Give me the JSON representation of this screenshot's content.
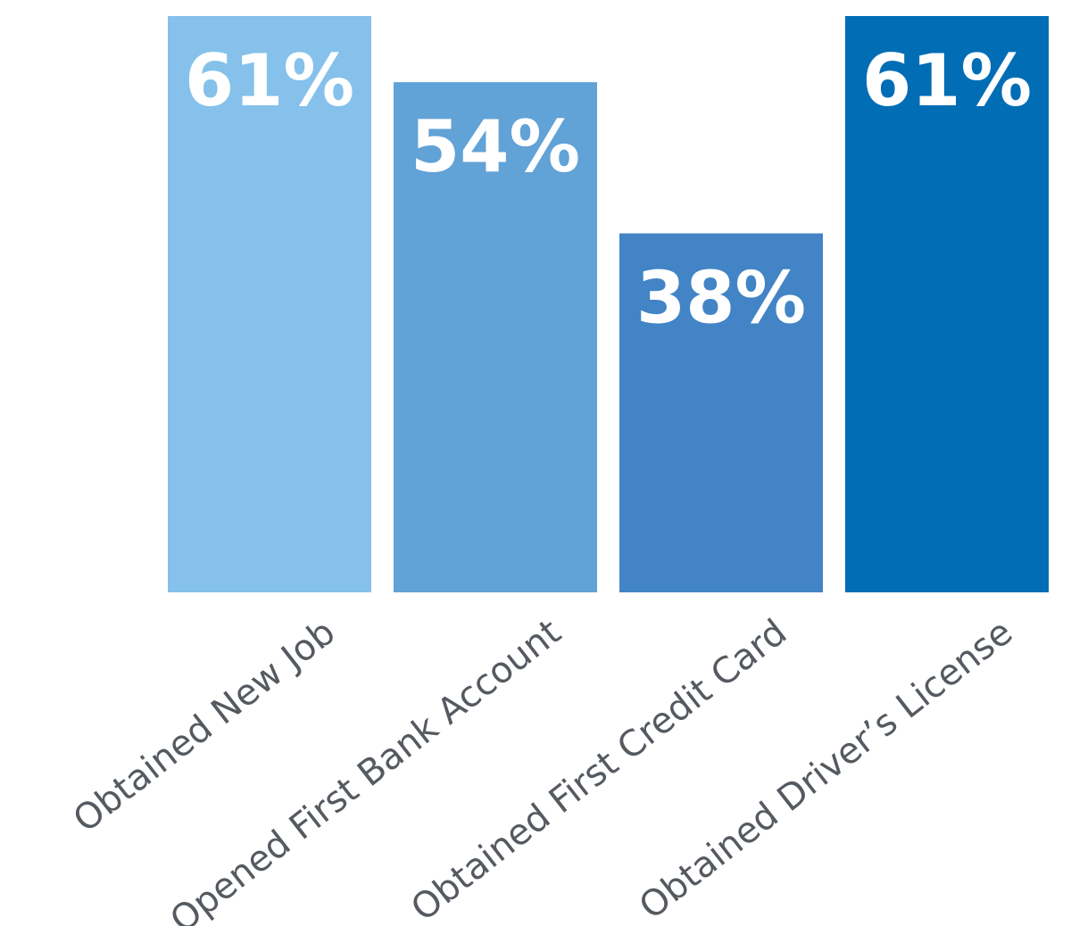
{
  "chart_data": {
    "type": "bar",
    "title": "",
    "xlabel": "",
    "ylabel": "",
    "categories": [
      "Obtained New Job",
      "Opened First Bank Account",
      "Obtained First Credit Card",
      "Obtained Driver’s License"
    ],
    "values": [
      61,
      54,
      38,
      61
    ],
    "value_labels": [
      "61%",
      "54%",
      "38%",
      "61%"
    ],
    "unit": "%",
    "ylim": [
      0,
      61
    ],
    "grid": false,
    "legend": "none",
    "bar_colors": [
      "#85c1ea",
      "#61a2d7",
      "#4284c6",
      "#016db5"
    ],
    "value_label_color": "#ffffff",
    "category_label_color": "#555a60"
  }
}
